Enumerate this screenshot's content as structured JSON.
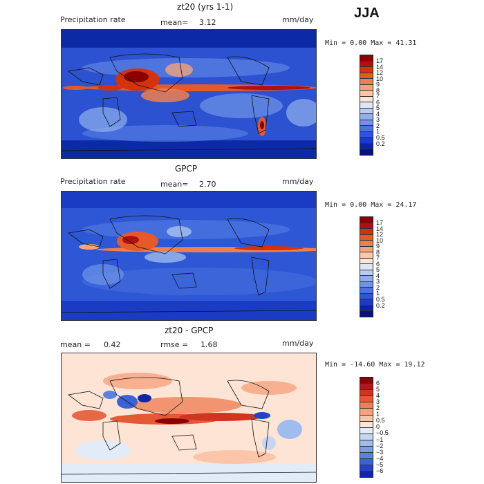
{
  "season": "JJA",
  "panels": [
    {
      "title": "zt20 (yrs 1-1)",
      "left_label": "Precipitation rate",
      "stat1_label": "mean=",
      "stat1_value": "3.12",
      "stat2_label": "",
      "stat2_value": "",
      "units": "mm/day",
      "minmax_text": "Min =   0.00 Max =  41.31",
      "colorbar": {
        "colors": [
          "#8b0000",
          "#b40f0f",
          "#d4320a",
          "#e65a28",
          "#f07f4f",
          "#f5a37a",
          "#fac8a8",
          "#fbe6d6",
          "#dbe6f6",
          "#b7cdf1",
          "#8fb0ec",
          "#6e94e6",
          "#4a74de",
          "#2e57d6",
          "#1a3cc4",
          "#0c23a6",
          "#041283"
        ],
        "labels": [
          "17",
          "14",
          "12",
          "10",
          "9",
          "8",
          "7",
          "6",
          "5",
          "4",
          "3",
          "2",
          "1",
          "0.5",
          "0.2"
        ]
      }
    },
    {
      "title": "GPCP",
      "left_label": "Precipitation rate",
      "stat1_label": "mean=",
      "stat1_value": "2.70",
      "stat2_label": "",
      "stat2_value": "",
      "units": "mm/day",
      "minmax_text": "Min =   0.00 Max =  24.17",
      "colorbar": {
        "colors": [
          "#8b0000",
          "#b40f0f",
          "#d4320a",
          "#e65a28",
          "#f07f4f",
          "#f5a37a",
          "#fac8a8",
          "#fbe6d6",
          "#dbe6f6",
          "#b7cdf1",
          "#8fb0ec",
          "#6e94e6",
          "#4a74de",
          "#2e57d6",
          "#1a3cc4",
          "#0c23a6",
          "#041283"
        ],
        "labels": [
          "17",
          "14",
          "12",
          "10",
          "9",
          "8",
          "7",
          "6",
          "5",
          "4",
          "3",
          "2",
          "1",
          "0.5",
          "0.2"
        ]
      }
    },
    {
      "title": "zt20 - GPCP",
      "left_label": "",
      "stat1_label": "mean =",
      "stat1_value": "0.42",
      "stat2_label": "rmse =",
      "stat2_value": "1.68",
      "units": "mm/day",
      "minmax_text": "Min = -14.60 Max =  19.12",
      "colorbar": {
        "colors": [
          "#8b0000",
          "#b11a14",
          "#d0361f",
          "#e45a35",
          "#ef7f55",
          "#f5a37e",
          "#fac5a8",
          "#fde4d4",
          "#e2ecf9",
          "#c4d6f3",
          "#9fbcee",
          "#7a9ee8",
          "#5a82e2",
          "#3b62d8",
          "#2244c4",
          "#0f27a3"
        ],
        "labels": [
          "6",
          "5",
          "4",
          "3",
          "2",
          "1",
          "0.5",
          "0",
          "−0.5",
          "−1",
          "−2",
          "−3",
          "−4",
          "−5",
          "−6"
        ]
      }
    }
  ],
  "chart_data": [
    {
      "type": "heatmap",
      "title": "zt20 (yrs 1-1)",
      "variable": "Precipitation rate",
      "units": "mm/day",
      "mean": 3.12,
      "min": 0.0,
      "max": 41.31,
      "color_levels": [
        0.2,
        0.5,
        1,
        2,
        3,
        4,
        5,
        6,
        7,
        8,
        9,
        10,
        12,
        14,
        17
      ],
      "grid": false
    },
    {
      "type": "heatmap",
      "title": "GPCP",
      "variable": "Precipitation rate",
      "units": "mm/day",
      "mean": 2.7,
      "min": 0.0,
      "max": 24.17,
      "color_levels": [
        0.2,
        0.5,
        1,
        2,
        3,
        4,
        5,
        6,
        7,
        8,
        9,
        10,
        12,
        14,
        17
      ],
      "grid": false
    },
    {
      "type": "heatmap",
      "title": "zt20 - GPCP",
      "units": "mm/day",
      "mean": 0.42,
      "rmse": 1.68,
      "min": -14.6,
      "max": 19.12,
      "color_levels": [
        -6,
        -5,
        -4,
        -3,
        -2,
        -1,
        -0.5,
        0,
        0.5,
        1,
        2,
        3,
        4,
        5,
        6
      ],
      "grid": false
    }
  ]
}
